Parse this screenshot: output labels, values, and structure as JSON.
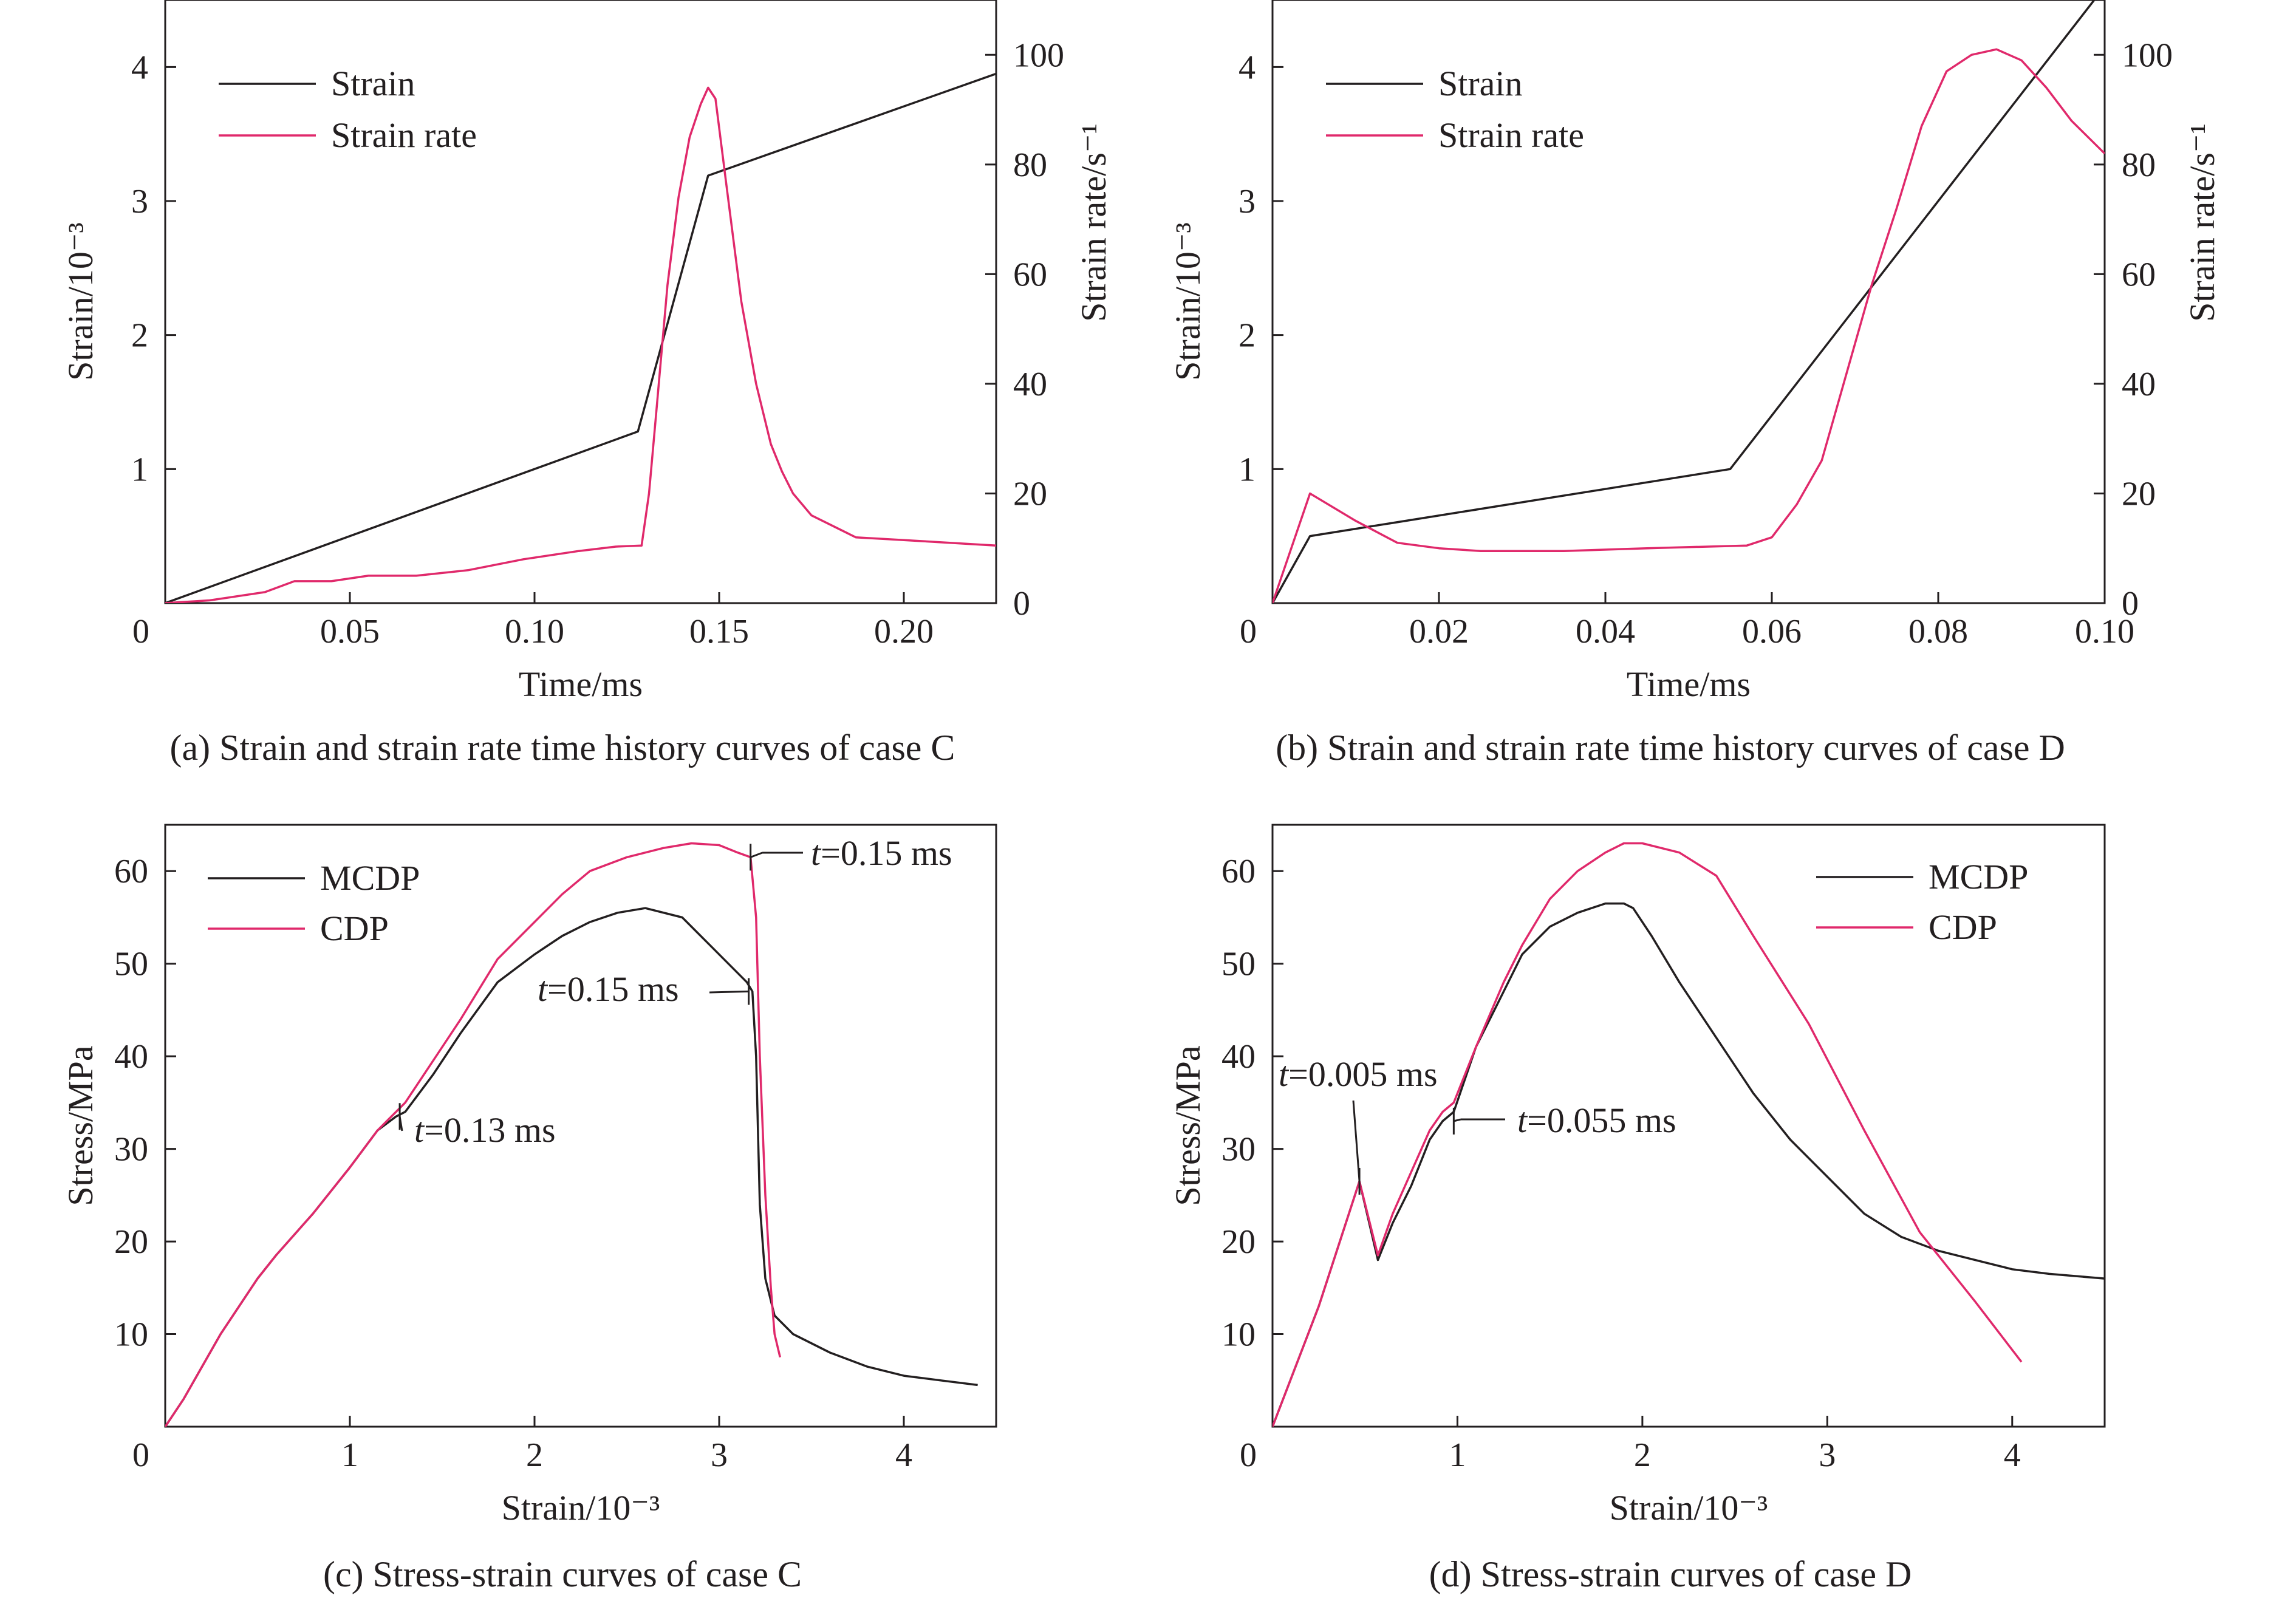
{
  "panels": [
    {
      "id": "a",
      "caption": "(a) Strain and strain rate time history curves of case C",
      "chart_data": {
        "type": "line",
        "xlabel": "Time/ms",
        "ylabel": "Strain/10⁻³",
        "y2label": "Strain rate/s⁻¹",
        "xlim": [
          0,
          0.225
        ],
        "ylim": [
          0,
          4.5
        ],
        "y2lim": [
          0,
          110
        ],
        "x_ticks": [
          0.05,
          0.1,
          0.15,
          0.2
        ],
        "x_tick_labels": [
          "0.05",
          "0.10",
          "0.15",
          "0.20"
        ],
        "y_ticks": [
          1,
          2,
          3,
          4
        ],
        "y_tick_labels": [
          "1",
          "2",
          "3",
          "4"
        ],
        "y2_ticks": [
          0,
          20,
          40,
          60,
          80,
          100
        ],
        "y2_tick_labels": [
          "0",
          "20",
          "40",
          "60",
          "80",
          "100"
        ],
        "origin_label": "0",
        "legend": "top-left",
        "grid": false,
        "series": [
          {
            "name": "Strain",
            "axis": "left",
            "color": "#231f20",
            "x": [
              0,
              0.128,
              0.147,
              0.225
            ],
            "y": [
              0,
              1.28,
              3.19,
              3.95
            ]
          },
          {
            "name": "Strain rate",
            "axis": "right",
            "color": "#e0296b",
            "x": [
              0,
              0.012,
              0.027,
              0.035,
              0.045,
              0.055,
              0.068,
              0.082,
              0.097,
              0.112,
              0.122,
              0.129,
              0.131,
              0.133,
              0.136,
              0.139,
              0.142,
              0.145,
              0.147,
              0.149,
              0.152,
              0.156,
              0.16,
              0.164,
              0.167,
              0.17,
              0.175,
              0.187,
              0.2,
              0.225
            ],
            "y": [
              0,
              0.5,
              2,
              4,
              4,
              5,
              5,
              6,
              8,
              9.5,
              10.3,
              10.5,
              20,
              35,
              58,
              74,
              85,
              91,
              94,
              92,
              76,
              55,
              40,
              29,
              24,
              20,
              16,
              12,
              11.5,
              10.5
            ]
          }
        ]
      }
    },
    {
      "id": "b",
      "caption": "(b) Strain and strain rate time history curves of case D",
      "chart_data": {
        "type": "line",
        "xlabel": "Time/ms",
        "ylabel": "Strain/10⁻³",
        "y2label": "Strain rate/s⁻¹",
        "xlim": [
          0,
          0.1
        ],
        "ylim": [
          0,
          4.5
        ],
        "y2lim": [
          0,
          110
        ],
        "x_ticks": [
          0.02,
          0.04,
          0.06,
          0.08,
          0.1
        ],
        "x_tick_labels": [
          "0.02",
          "0.04",
          "0.06",
          "0.08",
          "0.10"
        ],
        "y_ticks": [
          1,
          2,
          3,
          4
        ],
        "y_tick_labels": [
          "1",
          "2",
          "3",
          "4"
        ],
        "y2_ticks": [
          0,
          20,
          40,
          60,
          80,
          100
        ],
        "y2_tick_labels": [
          "0",
          "20",
          "40",
          "60",
          "80",
          "100"
        ],
        "origin_label": "0",
        "legend": "top-left",
        "grid": false,
        "series": [
          {
            "name": "Strain",
            "axis": "left",
            "color": "#231f20",
            "x": [
              0,
              0.0045,
              0.055,
              0.1
            ],
            "y": [
              0,
              0.5,
              1.0,
              4.6
            ]
          },
          {
            "name": "Strain rate",
            "axis": "right",
            "color": "#e0296b",
            "x": [
              0,
              0.0045,
              0.01,
              0.015,
              0.02,
              0.025,
              0.035,
              0.045,
              0.057,
              0.06,
              0.063,
              0.066,
              0.069,
              0.072,
              0.075,
              0.078,
              0.081,
              0.084,
              0.087,
              0.09,
              0.093,
              0.096,
              0.1
            ],
            "y": [
              0,
              20,
              15,
              11,
              10,
              9.5,
              9.5,
              10,
              10.5,
              12,
              18,
              26,
              42,
              58,
              72,
              87,
              97,
              100,
              101,
              99,
              94,
              88,
              82
            ]
          }
        ]
      }
    },
    {
      "id": "c",
      "caption": "(c) Stress-strain curves of case C",
      "chart_data": {
        "type": "line",
        "xlabel": "Strain/10⁻³",
        "ylabel": "Stress/MPa",
        "xlim": [
          0,
          4.5
        ],
        "ylim": [
          0,
          65
        ],
        "x_ticks": [
          1,
          2,
          3,
          4
        ],
        "x_tick_labels": [
          "1",
          "2",
          "3",
          "4"
        ],
        "y_ticks": [
          10,
          20,
          30,
          40,
          50,
          60
        ],
        "y_tick_labels": [
          "10",
          "20",
          "30",
          "40",
          "50",
          "60"
        ],
        "origin_label": "0",
        "legend": "top-left",
        "grid": false,
        "annotations": [
          {
            "t": "t",
            "rest": "=0.13 ms",
            "x": 1.27,
            "y": 33.5
          },
          {
            "t": "t",
            "rest": "=0.15 ms",
            "x": 3.16,
            "y": 47
          },
          {
            "t": "t",
            "rest": "=0.15 ms",
            "x": 3.17,
            "y": 61.5
          }
        ],
        "series": [
          {
            "name": "MCDP",
            "color": "#231f20",
            "x": [
              0,
              0.1,
              0.2,
              0.3,
              0.4,
              0.5,
              0.6,
              0.8,
              1.0,
              1.15,
              1.25,
              1.3,
              1.45,
              1.6,
              1.8,
              2.0,
              2.15,
              2.3,
              2.45,
              2.6,
              2.8,
              2.95,
              3.05,
              3.15,
              3.18,
              3.2,
              3.22,
              3.25,
              3.3,
              3.4,
              3.6,
              3.8,
              4.0,
              4.2,
              4.4
            ],
            "y": [
              0,
              3,
              6.5,
              10,
              13,
              16,
              18.5,
              23,
              28,
              32,
              33.5,
              34,
              38,
              42.5,
              48,
              51,
              53,
              54.5,
              55.5,
              56,
              55,
              52,
              50,
              48,
              47,
              40,
              24,
              16,
              12,
              10,
              8,
              6.5,
              5.5,
              5,
              4.5
            ]
          },
          {
            "name": "CDP",
            "color": "#e0296b",
            "x": [
              0,
              0.1,
              0.2,
              0.3,
              0.4,
              0.5,
              0.6,
              0.8,
              1.0,
              1.15,
              1.25,
              1.3,
              1.45,
              1.6,
              1.8,
              2.0,
              2.15,
              2.3,
              2.5,
              2.7,
              2.85,
              3.0,
              3.1,
              3.17,
              3.2,
              3.22,
              3.25,
              3.28,
              3.3,
              3.33
            ],
            "y": [
              0,
              3,
              6.5,
              10,
              13,
              16,
              18.5,
              23,
              28,
              32,
              34,
              35,
              39.5,
              44,
              50.5,
              54.5,
              57.5,
              60,
              61.5,
              62.5,
              63,
              62.8,
              62,
              61.5,
              55,
              40,
              25,
              15,
              10,
              7.5
            ]
          }
        ]
      }
    },
    {
      "id": "d",
      "caption": "(d) Stress-strain curves of case D",
      "chart_data": {
        "type": "line",
        "xlabel": "Strain/10⁻³",
        "ylabel": "Stress/MPa",
        "xlim": [
          0,
          4.5
        ],
        "ylim": [
          0,
          65
        ],
        "x_ticks": [
          1,
          2,
          3,
          4
        ],
        "x_tick_labels": [
          "1",
          "2",
          "3",
          "4"
        ],
        "y_ticks": [
          10,
          20,
          30,
          40,
          50,
          60
        ],
        "y_tick_labels": [
          "10",
          "20",
          "30",
          "40",
          "50",
          "60"
        ],
        "origin_label": "0",
        "legend": "top-right",
        "grid": false,
        "annotations": [
          {
            "t": "t",
            "rest": "=0.005 ms",
            "x": 0.47,
            "y": 26.5
          },
          {
            "t": "t",
            "rest": "=0.055 ms",
            "x": 0.98,
            "y": 33
          }
        ],
        "series": [
          {
            "name": "MCDP",
            "color": "#231f20",
            "x": [
              0,
              0.25,
              0.47,
              0.57,
              0.65,
              0.75,
              0.85,
              0.92,
              0.98,
              1.1,
              1.25,
              1.35,
              1.5,
              1.65,
              1.8,
              1.9,
              1.95,
              2.05,
              2.2,
              2.4,
              2.6,
              2.8,
              3.0,
              3.2,
              3.4,
              3.6,
              3.8,
              4.0,
              4.2,
              4.5
            ],
            "y": [
              0,
              13,
              26.5,
              18,
              22,
              26,
              31,
              33,
              34,
              41,
              47,
              51,
              54,
              55.5,
              56.5,
              56.5,
              56,
              53,
              48,
              42,
              36,
              31,
              27,
              23,
              20.5,
              19,
              18,
              17,
              16.5,
              16
            ]
          },
          {
            "name": "CDP",
            "color": "#e0296b",
            "x": [
              0,
              0.25,
              0.47,
              0.57,
              0.65,
              0.75,
              0.85,
              0.92,
              0.98,
              1.1,
              1.25,
              1.35,
              1.5,
              1.65,
              1.8,
              1.9,
              2.0,
              2.2,
              2.4,
              2.6,
              2.9,
              3.2,
              3.5,
              3.8,
              4.05
            ],
            "y": [
              0,
              13,
              26.5,
              18.5,
              23,
              27.5,
              32,
              34,
              35,
              41,
              48,
              52,
              57,
              60,
              62,
              63,
              63,
              62,
              59.5,
              53,
              43.5,
              32,
              21,
              13.5,
              7
            ]
          }
        ]
      }
    }
  ]
}
